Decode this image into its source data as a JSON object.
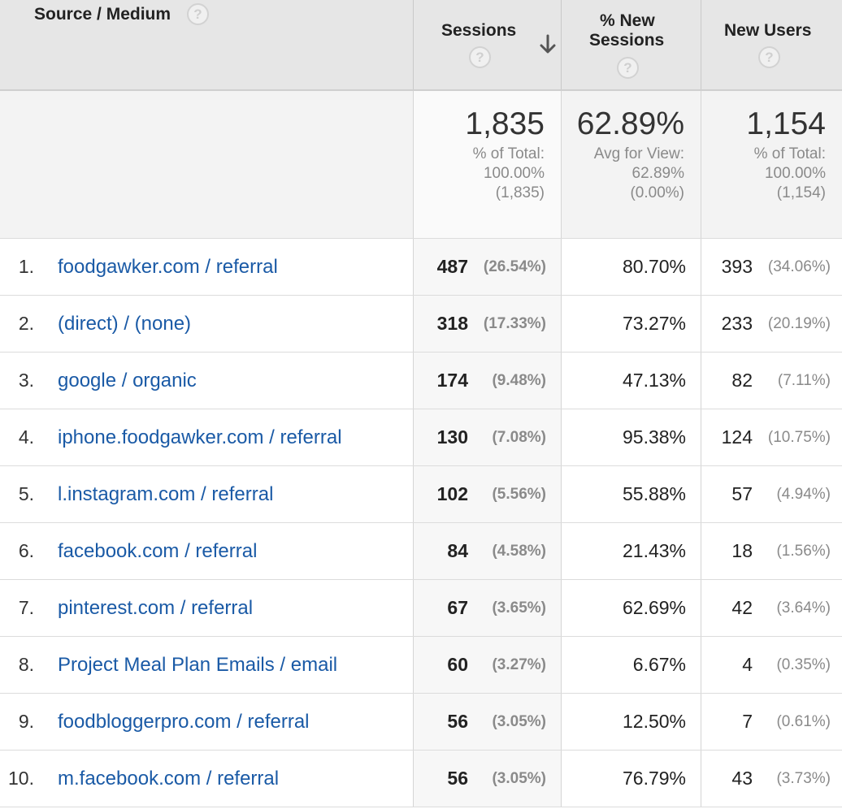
{
  "header": {
    "source_medium": "Source / Medium",
    "sessions": "Sessions",
    "pct_new_sessions_line1": "% New",
    "pct_new_sessions_line2": "Sessions",
    "new_users": "New Users",
    "help": "?"
  },
  "totals": {
    "sessions": {
      "value": "1,835",
      "line1": "% of Total:",
      "line2": "100.00%",
      "line3": "(1,835)"
    },
    "pct_new_sessions": {
      "value": "62.89%",
      "line1": "Avg for View:",
      "line2": "62.89%",
      "line3": "(0.00%)"
    },
    "new_users": {
      "value": "1,154",
      "line1": "% of Total:",
      "line2": "100.00%",
      "line3": "(1,154)"
    }
  },
  "rows": [
    {
      "idx": "1.",
      "name": "foodgawker.com / referral",
      "sessions": "487",
      "sessions_pct": "(26.54%)",
      "pct_new": "80.70%",
      "new_users": "393",
      "new_users_pct": "(34.06%)"
    },
    {
      "idx": "2.",
      "name": "(direct) / (none)",
      "sessions": "318",
      "sessions_pct": "(17.33%)",
      "pct_new": "73.27%",
      "new_users": "233",
      "new_users_pct": "(20.19%)"
    },
    {
      "idx": "3.",
      "name": "google / organic",
      "sessions": "174",
      "sessions_pct": "(9.48%)",
      "pct_new": "47.13%",
      "new_users": "82",
      "new_users_pct": "(7.11%)"
    },
    {
      "idx": "4.",
      "name": "iphone.foodgawker.com / referral",
      "sessions": "130",
      "sessions_pct": "(7.08%)",
      "pct_new": "95.38%",
      "new_users": "124",
      "new_users_pct": "(10.75%)"
    },
    {
      "idx": "5.",
      "name": "l.instagram.com / referral",
      "sessions": "102",
      "sessions_pct": "(5.56%)",
      "pct_new": "55.88%",
      "new_users": "57",
      "new_users_pct": "(4.94%)"
    },
    {
      "idx": "6.",
      "name": "facebook.com / referral",
      "sessions": "84",
      "sessions_pct": "(4.58%)",
      "pct_new": "21.43%",
      "new_users": "18",
      "new_users_pct": "(1.56%)"
    },
    {
      "idx": "7.",
      "name": "pinterest.com / referral",
      "sessions": "67",
      "sessions_pct": "(3.65%)",
      "pct_new": "62.69%",
      "new_users": "42",
      "new_users_pct": "(3.64%)"
    },
    {
      "idx": "8.",
      "name": "Project Meal Plan Emails / email",
      "sessions": "60",
      "sessions_pct": "(3.27%)",
      "pct_new": "6.67%",
      "new_users": "4",
      "new_users_pct": "(0.35%)"
    },
    {
      "idx": "9.",
      "name": "foodbloggerpro.com / referral",
      "sessions": "56",
      "sessions_pct": "(3.05%)",
      "pct_new": "12.50%",
      "new_users": "7",
      "new_users_pct": "(0.61%)"
    },
    {
      "idx": "10.",
      "name": "m.facebook.com / referral",
      "sessions": "56",
      "sessions_pct": "(3.05%)",
      "pct_new": "76.79%",
      "new_users": "43",
      "new_users_pct": "(3.73%)"
    }
  ]
}
